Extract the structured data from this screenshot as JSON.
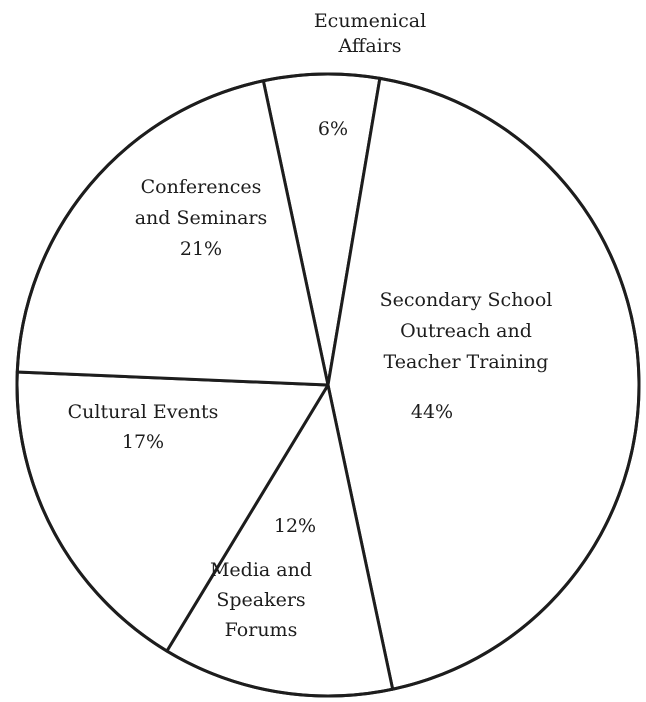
{
  "chart_data": {
    "type": "pie",
    "title": "",
    "slices": [
      {
        "label_lines": [
          "Ecumenical",
          "Affairs"
        ],
        "value": 6,
        "value_label": "6%"
      },
      {
        "label_lines": [
          "Secondary School",
          "Outreach and",
          "Teacher Training"
        ],
        "value": 44,
        "value_label": "44%"
      },
      {
        "label_lines": [
          "Media and",
          "Speakers",
          "Forums"
        ],
        "value": 12,
        "value_label": "12%"
      },
      {
        "label_lines": [
          "Cultural Events"
        ],
        "value": 17,
        "value_label": "17%"
      },
      {
        "label_lines": [
          "Conferences",
          "and Seminars"
        ],
        "value": 21,
        "value_label": "21%"
      }
    ],
    "colors": {
      "fill": "#ffffff",
      "stroke": "#1d1d1d",
      "text": "#1d1d1d"
    }
  }
}
